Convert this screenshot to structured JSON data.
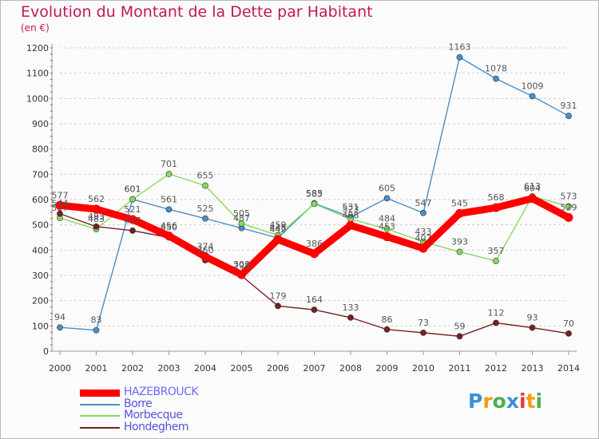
{
  "header": {
    "title": "Evolution du Montant de la Dette par Habitant",
    "unit": "(en €)"
  },
  "logo": {
    "text": "Proxiti",
    "colors": [
      "#3d8fd6",
      "#f39c12",
      "#4caf50",
      "#3d8fd6",
      "#e53935",
      "#f39c12",
      "#4caf50"
    ]
  },
  "chart_data": {
    "type": "line",
    "title": "Evolution du Montant de la Dette par Habitant",
    "ylabel": "(en €)",
    "xlabel": "",
    "x": [
      "2000",
      "2001",
      "2002",
      "2003",
      "2004",
      "2005",
      "2006",
      "2007",
      "2008",
      "2009",
      "2010",
      "2011",
      "2012",
      "2013",
      "2014"
    ],
    "ylim": [
      0,
      1200
    ],
    "yticks": [
      0,
      100,
      200,
      300,
      400,
      500,
      600,
      700,
      800,
      900,
      1000,
      1100,
      1200
    ],
    "grid": "horizontal-dashed",
    "legend_position": "bottom-left",
    "series": [
      {
        "name": "HAZEBROUCK",
        "color": "#ff0000",
        "values": [
          577,
          562,
          521,
          456,
          374,
          303,
          442,
          386,
          498,
          453,
          407,
          545,
          568,
          604,
          529
        ]
      },
      {
        "name": "Borre",
        "color": "#4a90c8",
        "values": [
          94,
          83,
          601,
          561,
          525,
          487,
          448,
          585,
          531,
          605,
          547,
          1163,
          1078,
          1009,
          931
        ]
      },
      {
        "name": "Morbecque",
        "color": "#88d860",
        "values": [
          527,
          483,
          601,
          701,
          655,
          505,
          459,
          583,
          523,
          484,
          433,
          393,
          357,
          613,
          573
        ]
      },
      {
        "name": "Hondeghem",
        "color": "#7a1f1f",
        "values": [
          544,
          493,
          477,
          450,
          360,
          298,
          179,
          164,
          133,
          86,
          73,
          59,
          112,
          93,
          70
        ]
      }
    ]
  }
}
